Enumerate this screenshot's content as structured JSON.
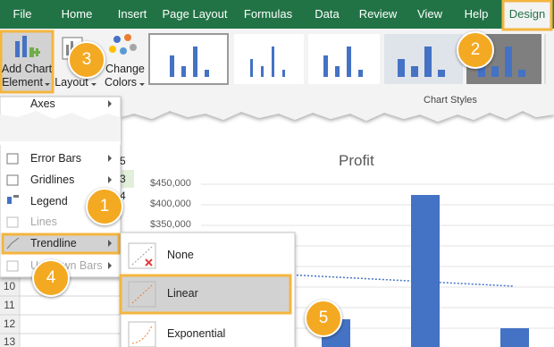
{
  "ribbon": {
    "tabs": [
      "File",
      "Home",
      "Insert",
      "Page Layout",
      "Formulas",
      "Data",
      "Review",
      "View",
      "Help",
      "Design"
    ],
    "buttons": [
      [
        "Add Chart",
        "Element"
      ],
      [
        "Layout"
      ],
      [
        "Change",
        "Colors"
      ]
    ],
    "group_label": "Chart Styles"
  },
  "menu": {
    "items": [
      "Axes",
      "Error Bars",
      "Gridlines",
      "Legend",
      "Lines",
      "Trendline",
      "Up/Down Bars"
    ]
  },
  "submenu": {
    "items": [
      "None",
      "Linear",
      "Exponential"
    ]
  },
  "sheet": {
    "cells": [
      "5",
      "3",
      "4"
    ],
    "row_numbers": [
      "10",
      "11",
      "12",
      "13"
    ]
  },
  "chart": {
    "title": "Profit",
    "y_tick_labels": [
      "$450,000",
      "$400,000",
      "$350,000"
    ]
  },
  "callouts": [
    "1",
    "2",
    "3",
    "4",
    "5"
  ]
}
